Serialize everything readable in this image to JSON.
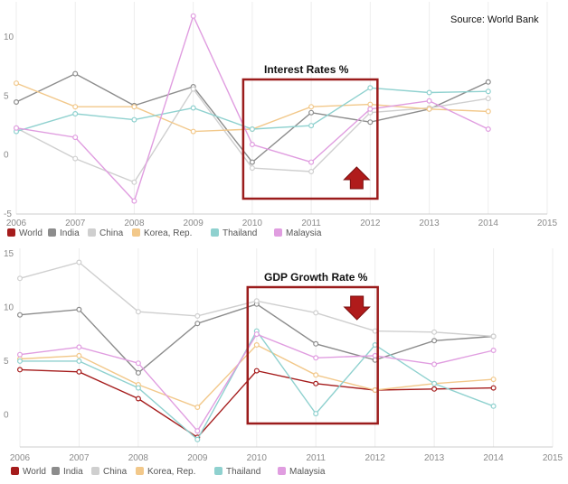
{
  "chart_data": [
    {
      "type": "line",
      "title": "",
      "source": "Source: World Bank",
      "annotation": "Interest Rates %",
      "trend": "up",
      "x": [
        2006,
        2007,
        2008,
        2009,
        2010,
        2011,
        2012,
        2013,
        2014
      ],
      "xticks": [
        "2006",
        "2007",
        "2008",
        "2009",
        "2010",
        "2011",
        "2012",
        "2013",
        "2014",
        "2015"
      ],
      "xlim": [
        2006,
        2015
      ],
      "ylim": [
        -5,
        13
      ],
      "yticks": [
        "-5",
        "0",
        "5",
        "10"
      ],
      "grid": "vertical",
      "legend": "bottom",
      "highlight_range": [
        2010,
        2012
      ],
      "series": [
        {
          "name": "World",
          "color": "#a51c1c",
          "values": [
            null,
            null,
            null,
            null,
            null,
            null,
            null,
            null,
            null
          ]
        },
        {
          "name": "India",
          "color": "#8c8c8c",
          "values": [
            4.5,
            6.9,
            4.2,
            5.8,
            -0.6,
            3.6,
            2.8,
            3.9,
            6.2
          ]
        },
        {
          "name": "China",
          "color": "#cfcfcf",
          "values": [
            2.3,
            -0.3,
            -2.3,
            5.6,
            -1.1,
            -1.4,
            3.6,
            4.0,
            4.8
          ]
        },
        {
          "name": "Korea, Rep.",
          "color": "#f2c88a",
          "values": [
            6.1,
            4.1,
            4.1,
            2.0,
            2.2,
            4.1,
            4.3,
            3.9,
            3.7
          ]
        },
        {
          "name": "Thailand",
          "color": "#8fd1cf",
          "values": [
            2.0,
            3.5,
            3.0,
            4.0,
            2.2,
            2.5,
            5.7,
            5.3,
            5.4
          ]
        },
        {
          "name": "Malaysia",
          "color": "#e09de0",
          "values": [
            2.3,
            1.5,
            -3.9,
            11.8,
            0.9,
            -0.6,
            3.9,
            4.6,
            2.2
          ]
        }
      ]
    },
    {
      "type": "line",
      "title": "",
      "annotation": "GDP Growth Rate %",
      "trend": "down",
      "x": [
        2006,
        2007,
        2008,
        2009,
        2010,
        2011,
        2012,
        2013,
        2014
      ],
      "xticks": [
        "2006",
        "2007",
        "2008",
        "2009",
        "2010",
        "2011",
        "2012",
        "2013",
        "2014",
        "2015"
      ],
      "xlim": [
        2006,
        2015
      ],
      "ylim": [
        -3,
        15.5
      ],
      "yticks": [
        "0",
        "5",
        "10",
        "15"
      ],
      "grid": "vertical",
      "legend": "bottom",
      "highlight_range": [
        2010,
        2012
      ],
      "series": [
        {
          "name": "World",
          "color": "#a51c1c",
          "values": [
            4.2,
            4.0,
            1.5,
            -2.1,
            4.1,
            2.9,
            2.3,
            2.4,
            2.5
          ]
        },
        {
          "name": "India",
          "color": "#8c8c8c",
          "values": [
            9.3,
            9.8,
            3.9,
            8.5,
            10.3,
            6.6,
            5.1,
            6.9,
            7.3
          ]
        },
        {
          "name": "China",
          "color": "#cfcfcf",
          "values": [
            12.7,
            14.2,
            9.6,
            9.2,
            10.6,
            9.5,
            7.8,
            7.7,
            7.3
          ]
        },
        {
          "name": "Korea, Rep.",
          "color": "#f2c88a",
          "values": [
            5.2,
            5.5,
            2.8,
            0.7,
            6.5,
            3.7,
            2.3,
            2.9,
            3.3
          ]
        },
        {
          "name": "Thailand",
          "color": "#8fd1cf",
          "values": [
            5.0,
            5.0,
            2.5,
            -2.3,
            7.8,
            0.1,
            6.5,
            2.9,
            0.8
          ]
        },
        {
          "name": "Malaysia",
          "color": "#e09de0",
          "values": [
            5.6,
            6.3,
            4.8,
            -1.5,
            7.5,
            5.3,
            5.5,
            4.7,
            6.0
          ]
        }
      ]
    }
  ]
}
